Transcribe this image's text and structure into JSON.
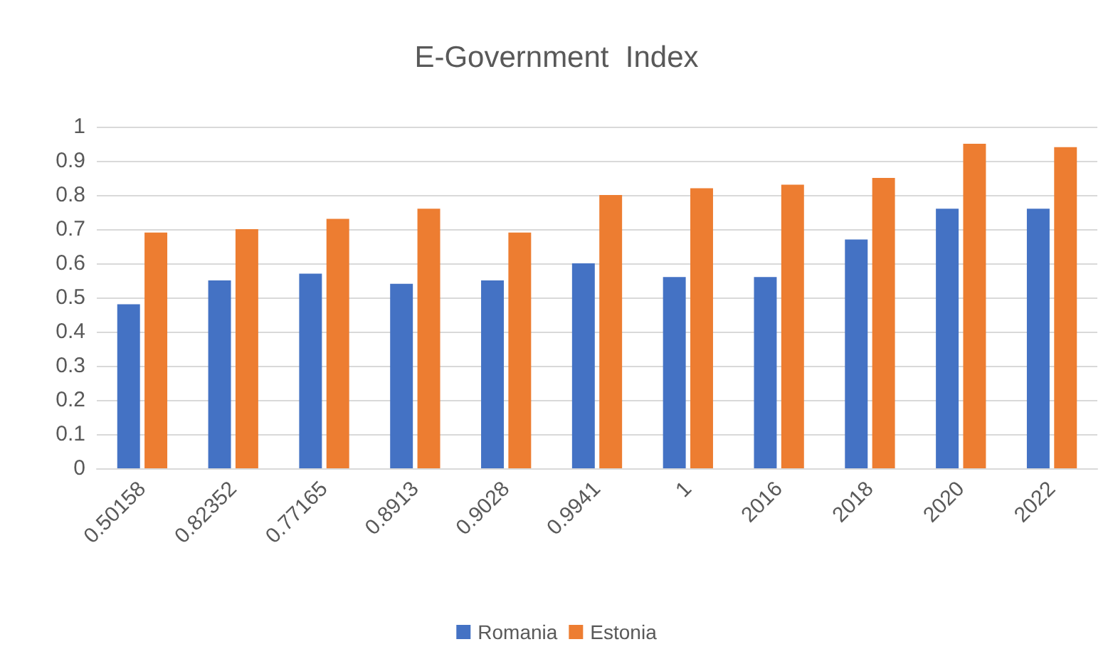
{
  "chart_data": {
    "type": "bar",
    "title": "E-Government  Index",
    "categories": [
      "0.50158",
      "0.82352",
      "0.77165",
      "0.8913",
      "0.9028",
      "0.9941",
      "1",
      "2016",
      "2018",
      "2020",
      "2022"
    ],
    "series": [
      {
        "name": "Romania",
        "color": "#4472c4",
        "values": [
          0.48,
          0.55,
          0.57,
          0.54,
          0.55,
          0.6,
          0.56,
          0.56,
          0.67,
          0.76,
          0.76
        ]
      },
      {
        "name": "Estonia",
        "color": "#ed7d31",
        "values": [
          0.69,
          0.7,
          0.73,
          0.76,
          0.69,
          0.8,
          0.82,
          0.83,
          0.85,
          0.95,
          0.94
        ]
      }
    ],
    "ylim": [
      0,
      1
    ],
    "yticks": [
      0,
      0.1,
      0.2,
      0.3,
      0.4,
      0.5,
      0.6,
      0.7,
      0.8,
      0.9,
      1
    ],
    "grid": "y",
    "legend": "bottom"
  }
}
